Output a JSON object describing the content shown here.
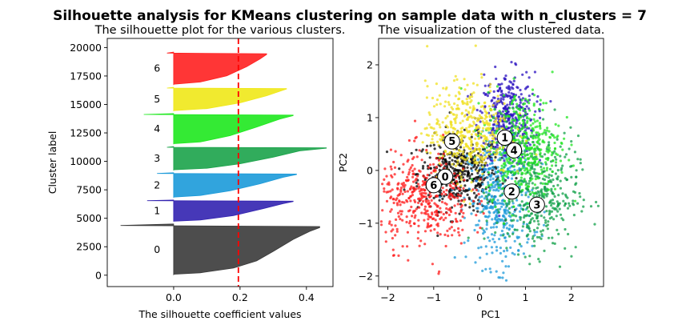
{
  "figure": {
    "suptitle": "Silhouette analysis for KMeans clustering on sample data with n_clusters = 7"
  },
  "chart_data": [
    {
      "type": "area",
      "title": "The silhouette plot for the various clusters.",
      "xlabel": "The silhouette coefficient values",
      "ylabel": "Cluster label",
      "xlim": [
        -0.2,
        0.48
      ],
      "ylim": [
        -1000,
        20800
      ],
      "xticks": [
        0.0,
        0.2,
        0.4
      ],
      "xtick_labels": [
        "0.0",
        "0.2",
        "0.4"
      ],
      "yticks": [
        0,
        2500,
        5000,
        7500,
        10000,
        12500,
        15000,
        17500,
        20000
      ],
      "ytick_labels": [
        "0",
        "2500",
        "5000",
        "7500",
        "10000",
        "12500",
        "15000",
        "17500",
        "20000"
      ],
      "average_silhouette": 0.195,
      "average_line_color": "#ff0000",
      "clusters": [
        {
          "label": "0",
          "y_lower": 0,
          "y_upper": 4500,
          "color": "#3a3a3a",
          "profile": [
            [
              0.0,
              0.02
            ],
            [
              0.08,
              0.05
            ],
            [
              0.18,
              0.15
            ],
            [
              0.25,
              0.3
            ],
            [
              0.3,
              0.5
            ],
            [
              0.36,
              0.75
            ],
            [
              0.41,
              0.92
            ],
            [
              0.44,
              1.0
            ]
          ],
          "min_value": -0.16
        },
        {
          "label": "1",
          "y_lower": 4700,
          "y_upper": 6600,
          "color": "#3222b0",
          "profile": [
            [
              0.0,
              0.02
            ],
            [
              0.08,
              0.08
            ],
            [
              0.18,
              0.3
            ],
            [
              0.27,
              0.65
            ],
            [
              0.33,
              0.9
            ],
            [
              0.36,
              1.0
            ]
          ],
          "min_value": -0.08
        },
        {
          "label": "2",
          "y_lower": 6800,
          "y_upper": 9000,
          "color": "#1b9ad9",
          "profile": [
            [
              0.0,
              0.03
            ],
            [
              0.08,
              0.1
            ],
            [
              0.17,
              0.3
            ],
            [
              0.26,
              0.6
            ],
            [
              0.33,
              0.88
            ],
            [
              0.37,
              1.0
            ]
          ],
          "min_value": -0.05
        },
        {
          "label": "3",
          "y_lower": 9200,
          "y_upper": 11300,
          "color": "#1ba34a",
          "profile": [
            [
              0.0,
              0.03
            ],
            [
              0.1,
              0.1
            ],
            [
              0.2,
              0.3
            ],
            [
              0.3,
              0.6
            ],
            [
              0.38,
              0.88
            ],
            [
              0.46,
              1.0
            ]
          ],
          "min_value": -0.02
        },
        {
          "label": "4",
          "y_lower": 11500,
          "y_upper": 14200,
          "color": "#1ee81e",
          "profile": [
            [
              0.0,
              0.02
            ],
            [
              0.08,
              0.08
            ],
            [
              0.17,
              0.3
            ],
            [
              0.25,
              0.6
            ],
            [
              0.32,
              0.88
            ],
            [
              0.36,
              1.0
            ]
          ],
          "min_value": -0.09
        },
        {
          "label": "5",
          "y_lower": 14400,
          "y_upper": 16500,
          "color": "#f0e818",
          "profile": [
            [
              0.0,
              0.03
            ],
            [
              0.1,
              0.12
            ],
            [
              0.2,
              0.38
            ],
            [
              0.28,
              0.7
            ],
            [
              0.32,
              0.9
            ],
            [
              0.34,
              1.0
            ]
          ],
          "min_value": -0.02
        },
        {
          "label": "6",
          "y_lower": 16700,
          "y_upper": 19600,
          "color": "#ff2020",
          "profile": [
            [
              0.0,
              0.03
            ],
            [
              0.08,
              0.1
            ],
            [
              0.16,
              0.3
            ],
            [
              0.22,
              0.6
            ],
            [
              0.26,
              0.85
            ],
            [
              0.28,
              1.0
            ]
          ],
          "min_value": -0.02
        }
      ]
    },
    {
      "type": "scatter",
      "title": "The visualization of the clustered data.",
      "xlabel": "PC1",
      "ylabel": "PC2",
      "xlim": [
        -2.2,
        2.7
      ],
      "ylim": [
        -2.2,
        2.5
      ],
      "xticks": [
        -2,
        -1,
        0,
        1,
        2
      ],
      "xtick_labels": [
        "−2",
        "−1",
        "0",
        "1",
        "2"
      ],
      "yticks": [
        -2,
        -1,
        0,
        1,
        2
      ],
      "ytick_labels": [
        "−2",
        "−1",
        "0",
        "1",
        "2"
      ],
      "centers": [
        {
          "label": "0",
          "x": -0.75,
          "y": -0.12
        },
        {
          "label": "1",
          "x": 0.55,
          "y": 0.62
        },
        {
          "label": "2",
          "x": 0.7,
          "y": -0.4
        },
        {
          "label": "3",
          "x": 1.25,
          "y": -0.65
        },
        {
          "label": "4",
          "x": 0.75,
          "y": 0.38
        },
        {
          "label": "5",
          "x": -0.6,
          "y": 0.55
        },
        {
          "label": "6",
          "x": -1.0,
          "y": -0.28
        }
      ],
      "clusters": [
        {
          "label": "0",
          "color": "#000000",
          "center": [
            -0.45,
            -0.05
          ],
          "spread": [
            0.45,
            0.35
          ]
        },
        {
          "label": "1",
          "color": "#2a10c0",
          "center": [
            0.6,
            0.95
          ],
          "spread": [
            0.3,
            0.45
          ]
        },
        {
          "label": "2",
          "color": "#1b9ad9",
          "center": [
            0.45,
            -0.6
          ],
          "spread": [
            0.35,
            0.6
          ]
        },
        {
          "label": "3",
          "color": "#10a048",
          "center": [
            1.25,
            -0.45
          ],
          "spread": [
            0.45,
            0.55
          ]
        },
        {
          "label": "4",
          "color": "#22e622",
          "center": [
            0.95,
            0.5
          ],
          "spread": [
            0.4,
            0.5
          ]
        },
        {
          "label": "5",
          "color": "#f0e020",
          "center": [
            -0.25,
            0.75
          ],
          "spread": [
            0.45,
            0.45
          ]
        },
        {
          "label": "6",
          "color": "#ff1a1a",
          "center": [
            -1.2,
            -0.55
          ],
          "spread": [
            0.5,
            0.45
          ]
        }
      ]
    }
  ]
}
